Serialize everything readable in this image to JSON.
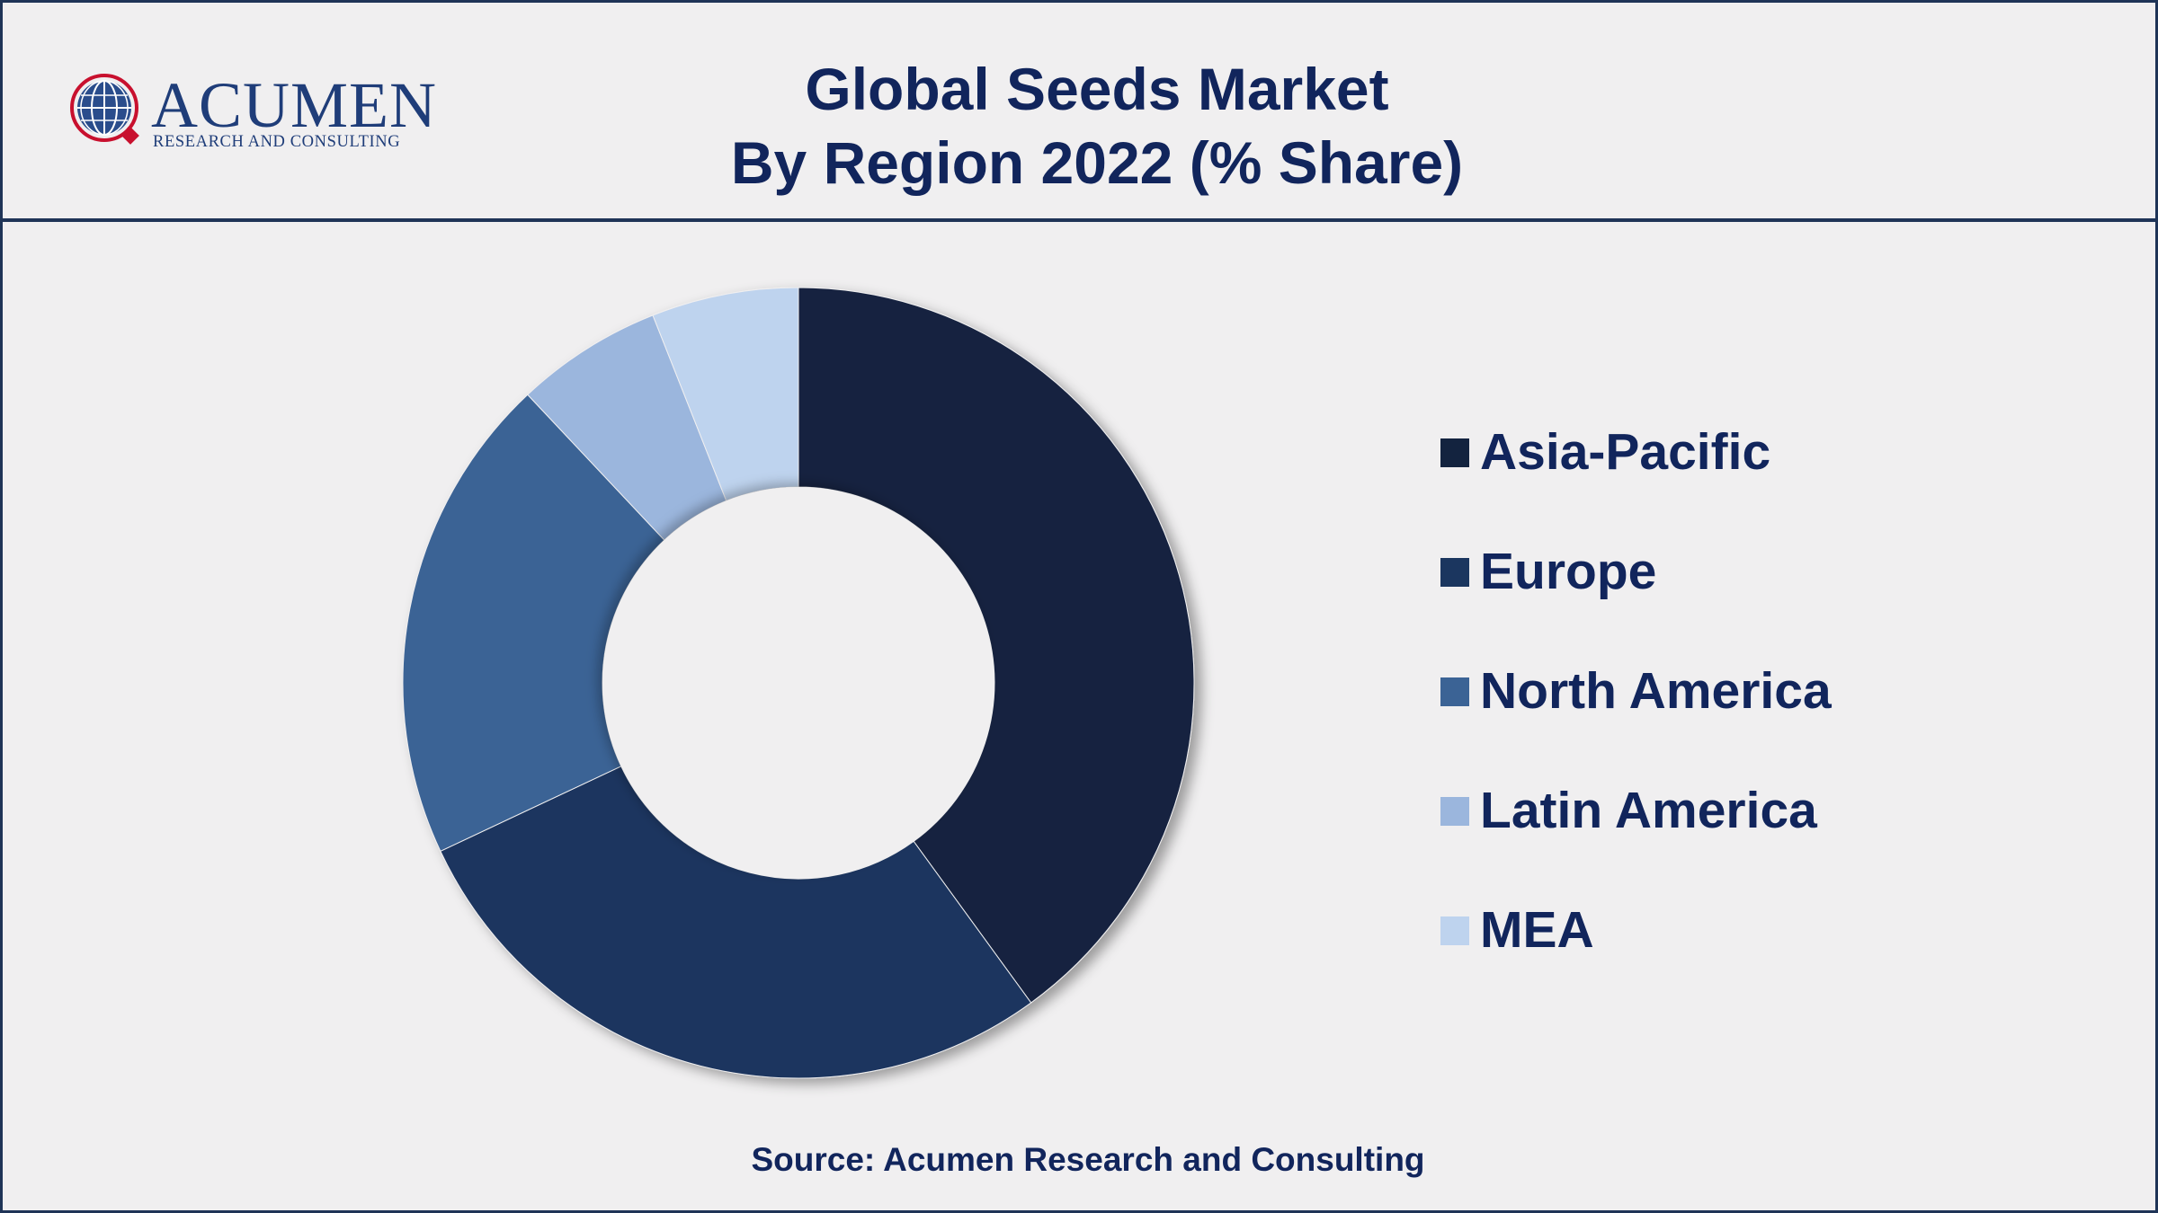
{
  "logo": {
    "name": "ACUMEN",
    "tagline": "RESEARCH AND CONSULTING"
  },
  "header": {
    "title_line1": "Global Seeds Market",
    "title_line2": "By Region 2022 (% Share)"
  },
  "chart_data": {
    "type": "pie",
    "donut": true,
    "title": "Global Seeds Market By Region 2022 (% Share)",
    "categories": [
      "Asia-Pacific",
      "Europe",
      "North America",
      "Latin America",
      "MEA"
    ],
    "values": [
      40,
      28,
      20,
      6,
      6
    ],
    "colors": [
      "#13233f",
      "#1b365f",
      "#3b6395",
      "#9bb6dd",
      "#bed3ee"
    ],
    "legend_position": "right",
    "data_labels": false
  },
  "footer": {
    "source": "Source: Acumen Research and Consulting"
  }
}
